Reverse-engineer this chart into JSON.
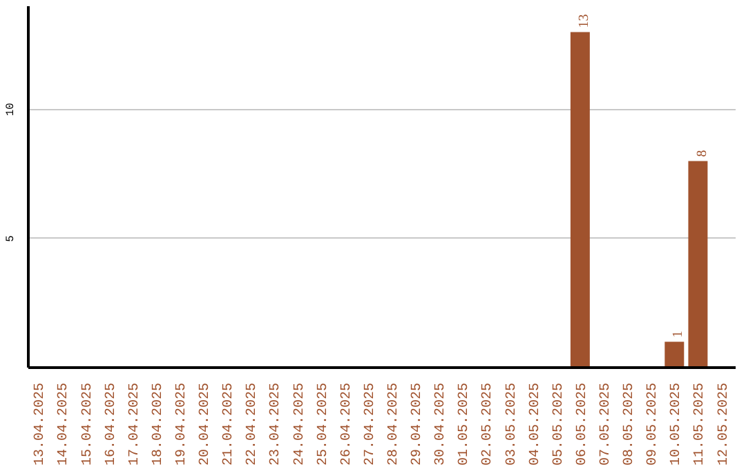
{
  "chart_data": {
    "type": "bar",
    "categories": [
      "13.04.2025",
      "14.04.2025",
      "15.04.2025",
      "16.04.2025",
      "17.04.2025",
      "18.04.2025",
      "19.04.2025",
      "20.04.2025",
      "21.04.2025",
      "22.04.2025",
      "23.04.2025",
      "24.04.2025",
      "25.04.2025",
      "26.04.2025",
      "27.04.2025",
      "28.04.2025",
      "29.04.2025",
      "30.04.2025",
      "01.05.2025",
      "02.05.2025",
      "03.05.2025",
      "04.05.2025",
      "05.05.2025",
      "06.05.2025",
      "07.05.2025",
      "08.05.2025",
      "09.05.2025",
      "10.05.2025",
      "11.05.2025",
      "12.05.2025"
    ],
    "values": [
      0,
      0,
      0,
      0,
      0,
      0,
      0,
      0,
      0,
      0,
      0,
      0,
      0,
      0,
      0,
      0,
      0,
      0,
      0,
      0,
      0,
      0,
      0,
      13,
      0,
      0,
      0,
      1,
      8,
      0
    ],
    "value_labels": [
      null,
      null,
      null,
      null,
      null,
      null,
      null,
      null,
      null,
      null,
      null,
      null,
      null,
      null,
      null,
      null,
      null,
      null,
      null,
      null,
      null,
      null,
      null,
      "13",
      null,
      null,
      null,
      "1",
      "8",
      null
    ],
    "color": "#a0522d",
    "ylim": [
      0,
      14
    ],
    "yticks": [
      5,
      10
    ],
    "grid": "y"
  }
}
